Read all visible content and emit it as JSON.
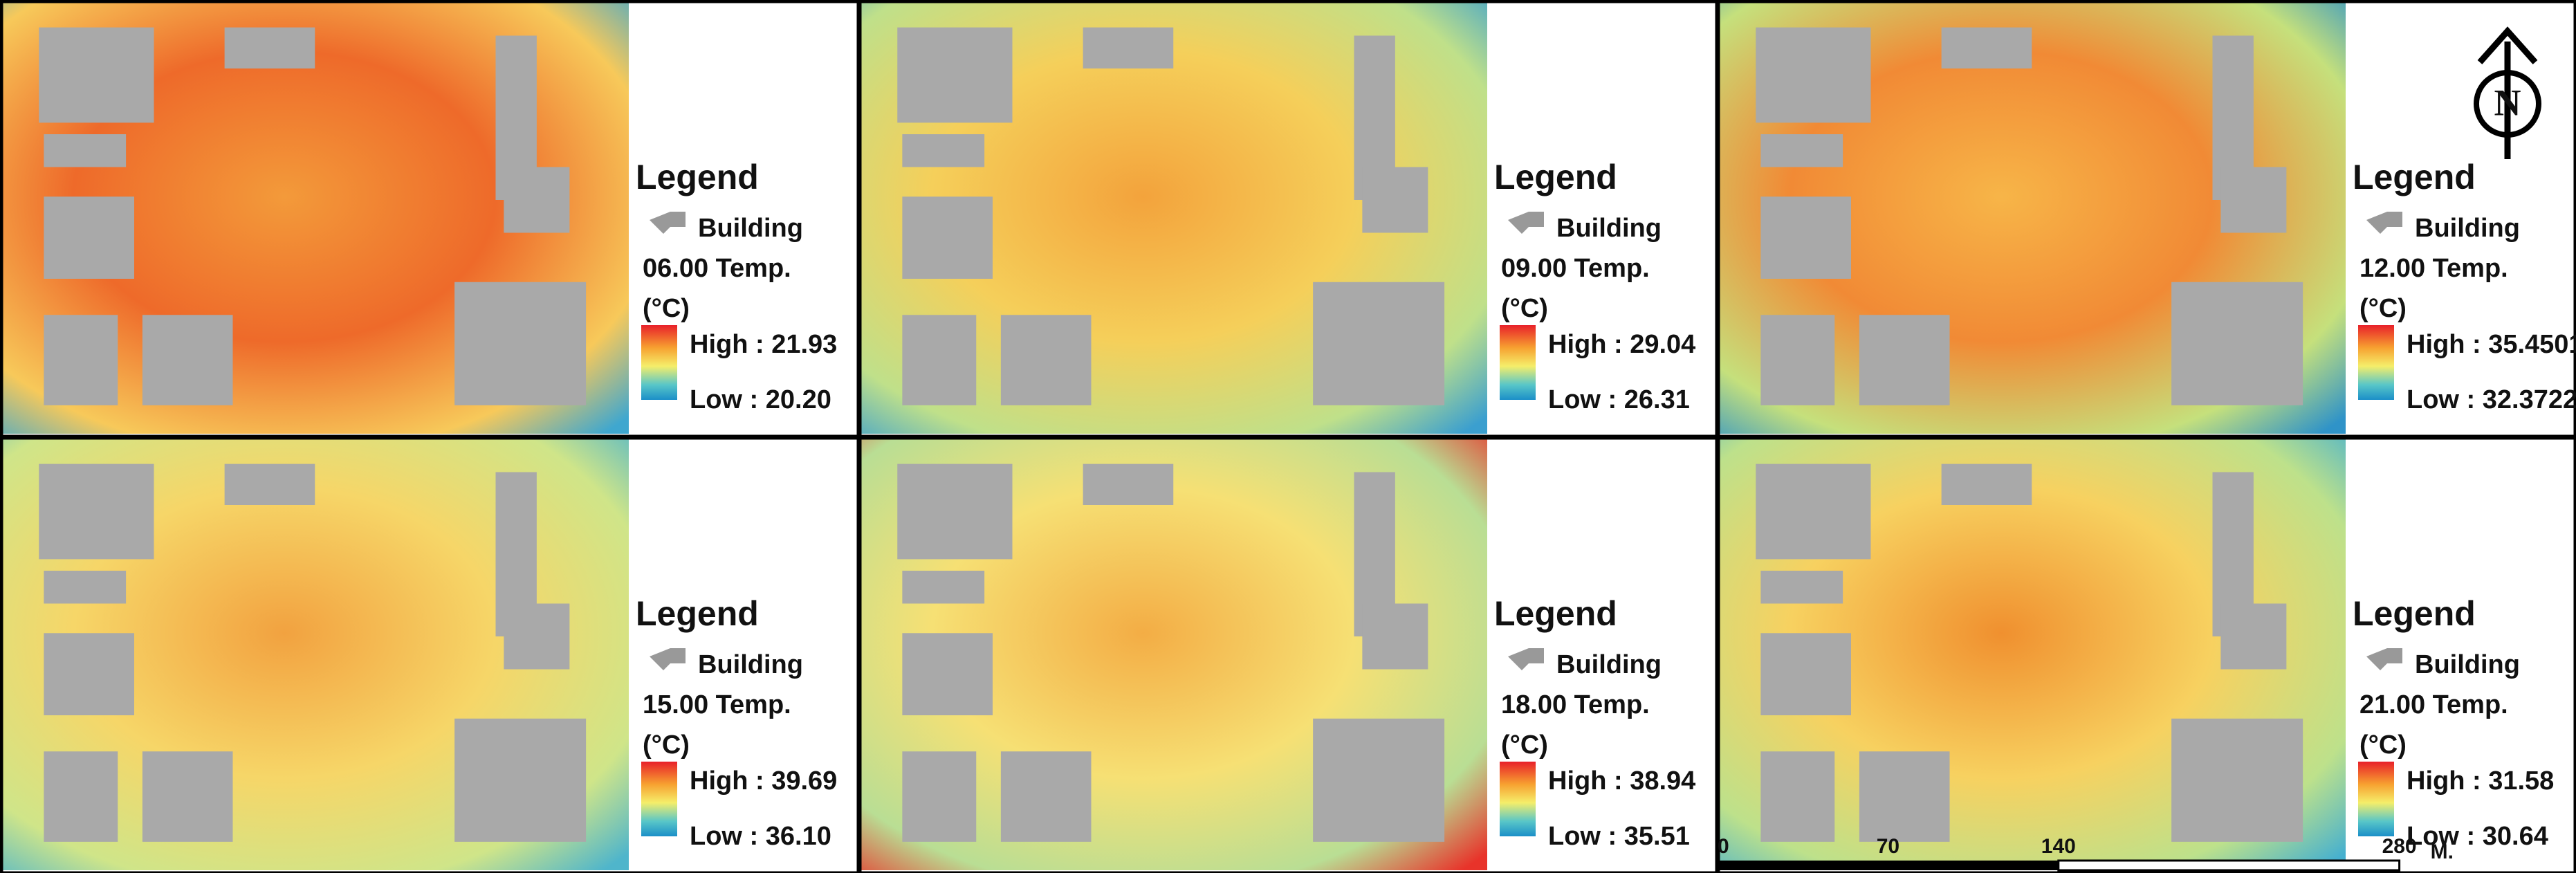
{
  "panels": [
    {
      "legend_title": "Legend",
      "building_label": "Building",
      "temp_label": "06.00 Temp.",
      "unit": "(°C)",
      "high": "High : 21.93",
      "low": "Low : 20.20"
    },
    {
      "legend_title": "Legend",
      "building_label": "Building",
      "temp_label": "09.00 Temp.",
      "unit": "(°C)",
      "high": "High : 29.04",
      "low": "Low : 26.31"
    },
    {
      "legend_title": "Legend",
      "building_label": "Building",
      "temp_label": "12.00 Temp.",
      "unit": "(°C)",
      "high": "High : 35.4501",
      "low": "Low : 32.3722"
    },
    {
      "legend_title": "Legend",
      "building_label": "Building",
      "temp_label": "15.00 Temp.",
      "unit": "(°C)",
      "high": "High : 39.69",
      "low": "Low : 36.10"
    },
    {
      "legend_title": "Legend",
      "building_label": "Building",
      "temp_label": "18.00 Temp.",
      "unit": "(°C)",
      "high": "High : 38.94",
      "low": "Low : 35.51"
    },
    {
      "legend_title": "Legend",
      "building_label": "Building",
      "temp_label": "21.00 Temp.",
      "unit": "(°C)",
      "high": "High : 31.58",
      "low": "Low : 30.64"
    }
  ],
  "scale_bar": {
    "labels": [
      "0",
      "70",
      "140",
      "280"
    ],
    "unit": "M."
  },
  "north_arrow": "N"
}
